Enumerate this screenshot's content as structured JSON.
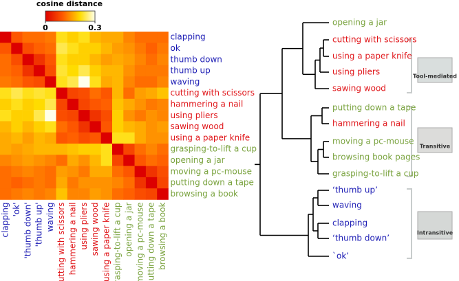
{
  "chart_data": [
    {
      "type": "heatmap",
      "colorbar_label": "cosine distance",
      "clim": [
        0,
        0.3
      ],
      "cticks": [
        0,
        0.3
      ],
      "categories": [
        "clapping",
        "ok",
        "thumb down",
        "thumb up",
        "waving",
        "cutting with scissors",
        "hammering a nail",
        "using pliers",
        "sawing wood",
        "using a paper knife",
        "grasping-to-lift a cup",
        "opening a jar",
        "moving a pc-mouse",
        "putting down a tape",
        "browsing a book"
      ],
      "column_labels": [
        "clapping",
        "'ok'",
        "'thumb down'",
        "'thumb up'",
        "waving",
        "cutting with scissors",
        "hammering a nail",
        "using pliers",
        "sawing wood",
        "using a paper knife",
        "grasping-to-lift a cup",
        "opening a jar",
        "moving a pc-mouse",
        "putting down a tape",
        "browsing a book"
      ],
      "category_colors": [
        "#1c1cb4",
        "#1c1cb4",
        "#1c1cb4",
        "#1c1cb4",
        "#1c1cb4",
        "#e0161a",
        "#e0161a",
        "#e0161a",
        "#e0161a",
        "#e0161a",
        "#7aa33f",
        "#7aa33f",
        "#7aa33f",
        "#7aa33f",
        "#7aa33f"
      ],
      "values": [
        [
          0,
          0.1,
          0.12,
          0.12,
          0.13,
          0.22,
          0.2,
          0.22,
          0.18,
          0.17,
          0.17,
          0.14,
          0.12,
          0.12,
          0.12
        ],
        [
          0.1,
          0,
          0.09,
          0.11,
          0.12,
          0.24,
          0.22,
          0.2,
          0.2,
          0.18,
          0.16,
          0.15,
          0.13,
          0.11,
          0.13
        ],
        [
          0.12,
          0.09,
          0,
          0.06,
          0.1,
          0.22,
          0.2,
          0.2,
          0.18,
          0.16,
          0.17,
          0.16,
          0.14,
          0.12,
          0.14
        ],
        [
          0.12,
          0.11,
          0.06,
          0,
          0.09,
          0.23,
          0.21,
          0.24,
          0.2,
          0.18,
          0.18,
          0.15,
          0.13,
          0.13,
          0.13
        ],
        [
          0.13,
          0.12,
          0.1,
          0.09,
          0,
          0.22,
          0.24,
          0.3,
          0.22,
          0.17,
          0.18,
          0.14,
          0.12,
          0.12,
          0.14
        ],
        [
          0.22,
          0.24,
          0.22,
          0.23,
          0.22,
          0,
          0.08,
          0.09,
          0.12,
          0.1,
          0.18,
          0.12,
          0.16,
          0.17,
          0.19
        ],
        [
          0.2,
          0.22,
          0.2,
          0.21,
          0.24,
          0.08,
          0,
          0.08,
          0.1,
          0.11,
          0.19,
          0.17,
          0.15,
          0.13,
          0.14
        ],
        [
          0.22,
          0.2,
          0.2,
          0.24,
          0.3,
          0.09,
          0.08,
          0,
          0.06,
          0.09,
          0.2,
          0.15,
          0.13,
          0.15,
          0.14
        ],
        [
          0.18,
          0.2,
          0.18,
          0.2,
          0.22,
          0.12,
          0.1,
          0.06,
          0,
          0.1,
          0.2,
          0.18,
          0.17,
          0.15,
          0.16
        ],
        [
          0.17,
          0.18,
          0.16,
          0.18,
          0.17,
          0.1,
          0.11,
          0.09,
          0.1,
          0,
          0.22,
          0.22,
          0.17,
          0.15,
          0.15
        ],
        [
          0.17,
          0.16,
          0.17,
          0.18,
          0.18,
          0.18,
          0.19,
          0.2,
          0.2,
          0.22,
          0,
          0.08,
          0.12,
          0.14,
          0.12
        ],
        [
          0.14,
          0.15,
          0.16,
          0.15,
          0.14,
          0.12,
          0.17,
          0.15,
          0.18,
          0.22,
          0.08,
          0,
          0.1,
          0.12,
          0.11
        ],
        [
          0.12,
          0.13,
          0.14,
          0.13,
          0.12,
          0.16,
          0.15,
          0.13,
          0.17,
          0.17,
          0.12,
          0.1,
          0,
          0.06,
          0.09
        ],
        [
          0.12,
          0.11,
          0.12,
          0.13,
          0.12,
          0.17,
          0.13,
          0.15,
          0.15,
          0.15,
          0.14,
          0.12,
          0.06,
          0,
          0.08
        ],
        [
          0.12,
          0.13,
          0.14,
          0.13,
          0.14,
          0.19,
          0.14,
          0.14,
          0.16,
          0.15,
          0.12,
          0.11,
          0.09,
          0.08,
          0
        ]
      ]
    },
    {
      "type": "dendrogram",
      "leaves": [
        "opening a jar",
        "cutting with scissors",
        "using a paper knife",
        "using pliers",
        "sawing wood",
        "putting down a tape",
        "hammering a nail",
        "moving a pc-mouse",
        "browsing book pages",
        "grasping-to-lift a cup",
        "‘thumb up’",
        "waving",
        "clapping",
        "‘thumb down’",
        "`ok’"
      ],
      "leaf_colors": [
        "#7aa33f",
        "#e0161a",
        "#e0161a",
        "#e0161a",
        "#e0161a",
        "#7aa33f",
        "#e0161a",
        "#7aa33f",
        "#7aa33f",
        "#7aa33f",
        "#1c1cb4",
        "#1c1cb4",
        "#1c1cb4",
        "#1c1cb4",
        "#1c1cb4"
      ],
      "groups": [
        "Tool-mediated",
        "Transitive",
        "Intransitive"
      ]
    }
  ]
}
